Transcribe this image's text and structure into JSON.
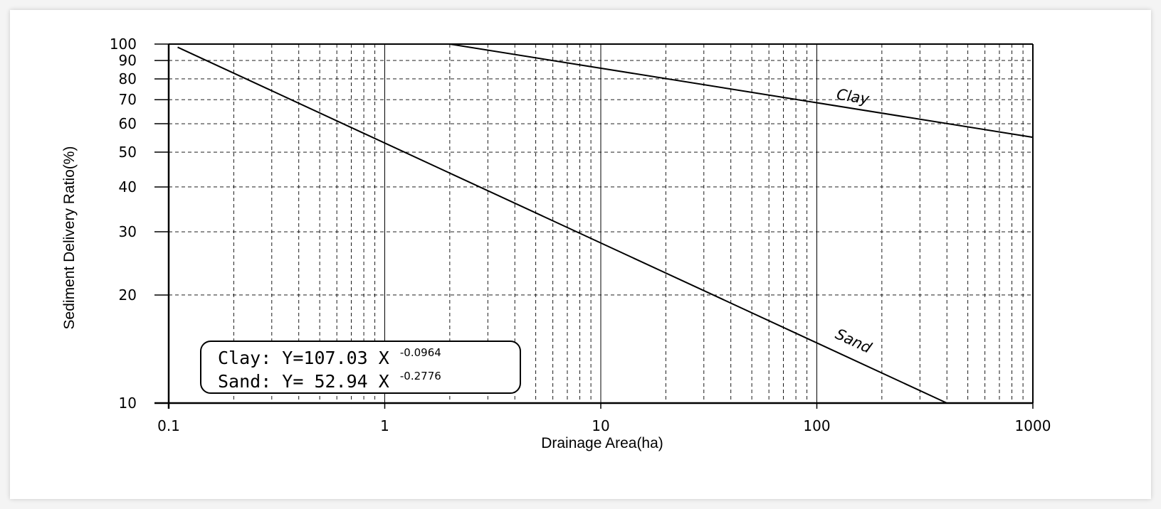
{
  "chart_data": {
    "type": "line",
    "xscale": "log",
    "yscale": "log",
    "xlim": [
      0.1,
      1000
    ],
    "ylim": [
      10,
      100
    ],
    "grid": true,
    "xlabel": "Drainage Area(ha)",
    "ylabel": "Sediment Delivery Ratio(%)",
    "x_ticks": [
      0.1,
      1,
      10,
      100,
      1000
    ],
    "x_tick_labels": [
      "0.1",
      "1",
      "10",
      "100",
      "1000"
    ],
    "y_ticks": [
      10,
      20,
      30,
      40,
      50,
      60,
      70,
      80,
      90,
      100
    ],
    "y_tick_labels": [
      "10",
      "20",
      "30",
      "40",
      "50",
      "60",
      "70",
      "80",
      "90",
      "100"
    ],
    "series": [
      {
        "name": "Clay",
        "coef": 107.03,
        "exponent": -0.0964,
        "x": [
          2,
          1000
        ],
        "y": [
          100,
          55
        ]
      },
      {
        "name": "Sand",
        "coef": 52.94,
        "exponent": -0.2776,
        "x": [
          0.11,
          400
        ],
        "y": [
          98,
          10
        ]
      }
    ],
    "annotations": {
      "clay_label": "Clay",
      "sand_label": "Sand",
      "equation_clay_prefix": "Clay: Y=107.03 X",
      "equation_clay_exp": "-0.0964",
      "equation_sand_prefix": "Sand: Y= 52.94 X",
      "equation_sand_exp": "-0.2776"
    },
    "colors": {
      "line": "#000000",
      "grid": "#000000",
      "background": "#ffffff"
    }
  }
}
